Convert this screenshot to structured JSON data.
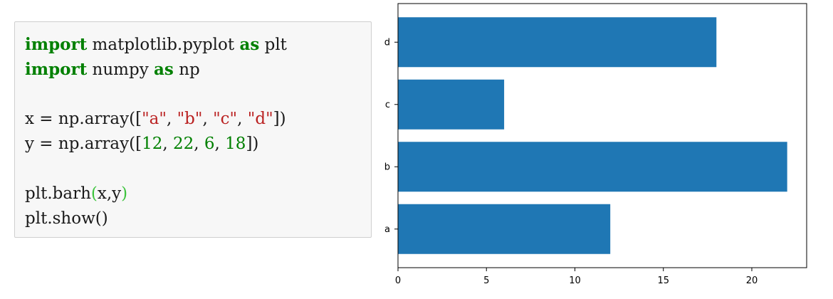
{
  "code": {
    "line1": {
      "kw1": "import",
      "t1": " matplotlib.pyplot ",
      "kw2": "as",
      "t2": " plt"
    },
    "line2": {
      "kw1": "import",
      "t1": " numpy ",
      "kw2": "as",
      "t2": " np"
    },
    "line3": {
      "t1": "x = np.array([",
      "s1": "\"a\"",
      "c1": ", ",
      "s2": "\"b\"",
      "c2": ", ",
      "s3": "\"c\"",
      "c3": ", ",
      "s4": "\"d\"",
      "t2": "])"
    },
    "line4": {
      "t1": "y = np.array([",
      "n1": "12",
      "c1": ", ",
      "n2": "22",
      "c2": ", ",
      "n3": "6",
      "c3": ", ",
      "n4": "18",
      "t2": "])"
    },
    "line5": {
      "t1": "plt.barh",
      "p1": "(",
      "t2": "x,y",
      "p2": ")"
    },
    "line6": {
      "t1": "plt.show()"
    }
  },
  "chart_data": {
    "type": "bar",
    "orientation": "horizontal",
    "categories": [
      "a",
      "b",
      "c",
      "d"
    ],
    "values": [
      12,
      22,
      6,
      18
    ],
    "xlim": [
      0,
      23.1
    ],
    "xticks": [
      0,
      5,
      10,
      15,
      20
    ],
    "color": "#1f77b4",
    "grid": false
  }
}
